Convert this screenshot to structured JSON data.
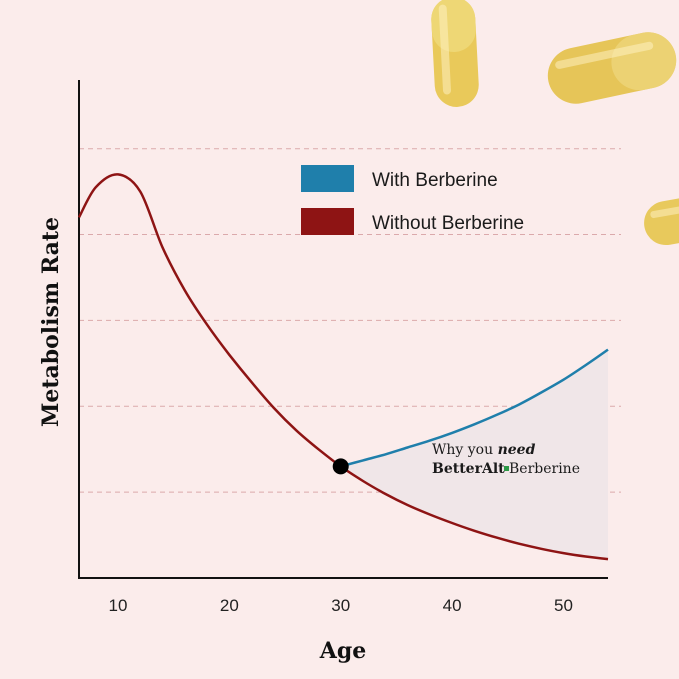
{
  "chart_data": {
    "type": "line",
    "xlabel": "Age",
    "ylabel": "Metabolism Rate",
    "xlim": [
      6.5,
      54
    ],
    "ylim": [
      0,
      5.8
    ],
    "x_ticks": [
      "10",
      "20",
      "30",
      "40",
      "50"
    ],
    "grid": "horizontal-dashed",
    "legend_placement": "top-right",
    "legend": [
      {
        "label": "With Berberine",
        "color": "#1f7fab"
      },
      {
        "label": "Without Berberine",
        "color": "#8e1414"
      }
    ],
    "series": [
      {
        "name": "Without Berberine",
        "color": "#8e1414",
        "points": [
          [
            6.5,
            4.2
          ],
          [
            8,
            4.55
          ],
          [
            10,
            4.7
          ],
          [
            12,
            4.5
          ],
          [
            14,
            3.85
          ],
          [
            16,
            3.35
          ],
          [
            18,
            2.95
          ],
          [
            20,
            2.6
          ],
          [
            22,
            2.28
          ],
          [
            24,
            1.98
          ],
          [
            26,
            1.72
          ],
          [
            28,
            1.5
          ],
          [
            30,
            1.3
          ],
          [
            32,
            1.13
          ],
          [
            34,
            0.98
          ],
          [
            36,
            0.85
          ],
          [
            38,
            0.74
          ],
          [
            40,
            0.64
          ],
          [
            42,
            0.55
          ],
          [
            44,
            0.47
          ],
          [
            46,
            0.4
          ],
          [
            48,
            0.34
          ],
          [
            50,
            0.29
          ],
          [
            52,
            0.25
          ],
          [
            54,
            0.22
          ]
        ]
      },
      {
        "name": "With Berberine",
        "color": "#1f7fab",
        "points": [
          [
            30,
            1.3
          ],
          [
            32,
            1.37
          ],
          [
            34,
            1.44
          ],
          [
            36,
            1.52
          ],
          [
            38,
            1.6
          ],
          [
            40,
            1.69
          ],
          [
            42,
            1.79
          ],
          [
            44,
            1.9
          ],
          [
            46,
            2.02
          ],
          [
            48,
            2.16
          ],
          [
            50,
            2.31
          ],
          [
            52,
            2.48
          ],
          [
            54,
            2.66
          ]
        ]
      }
    ],
    "marker": {
      "x": 30,
      "y": 1.3
    },
    "annotation": {
      "line1_plain": "Why you ",
      "line1_bold": "need",
      "line2_brand": "BetterAlt",
      "line2_rest": " Berberine"
    }
  },
  "colors": {
    "background": "#fbeceb",
    "fill_between": "#f0e6e8",
    "gridline": "#dba9ab",
    "brand_square": "#2e9a48"
  }
}
